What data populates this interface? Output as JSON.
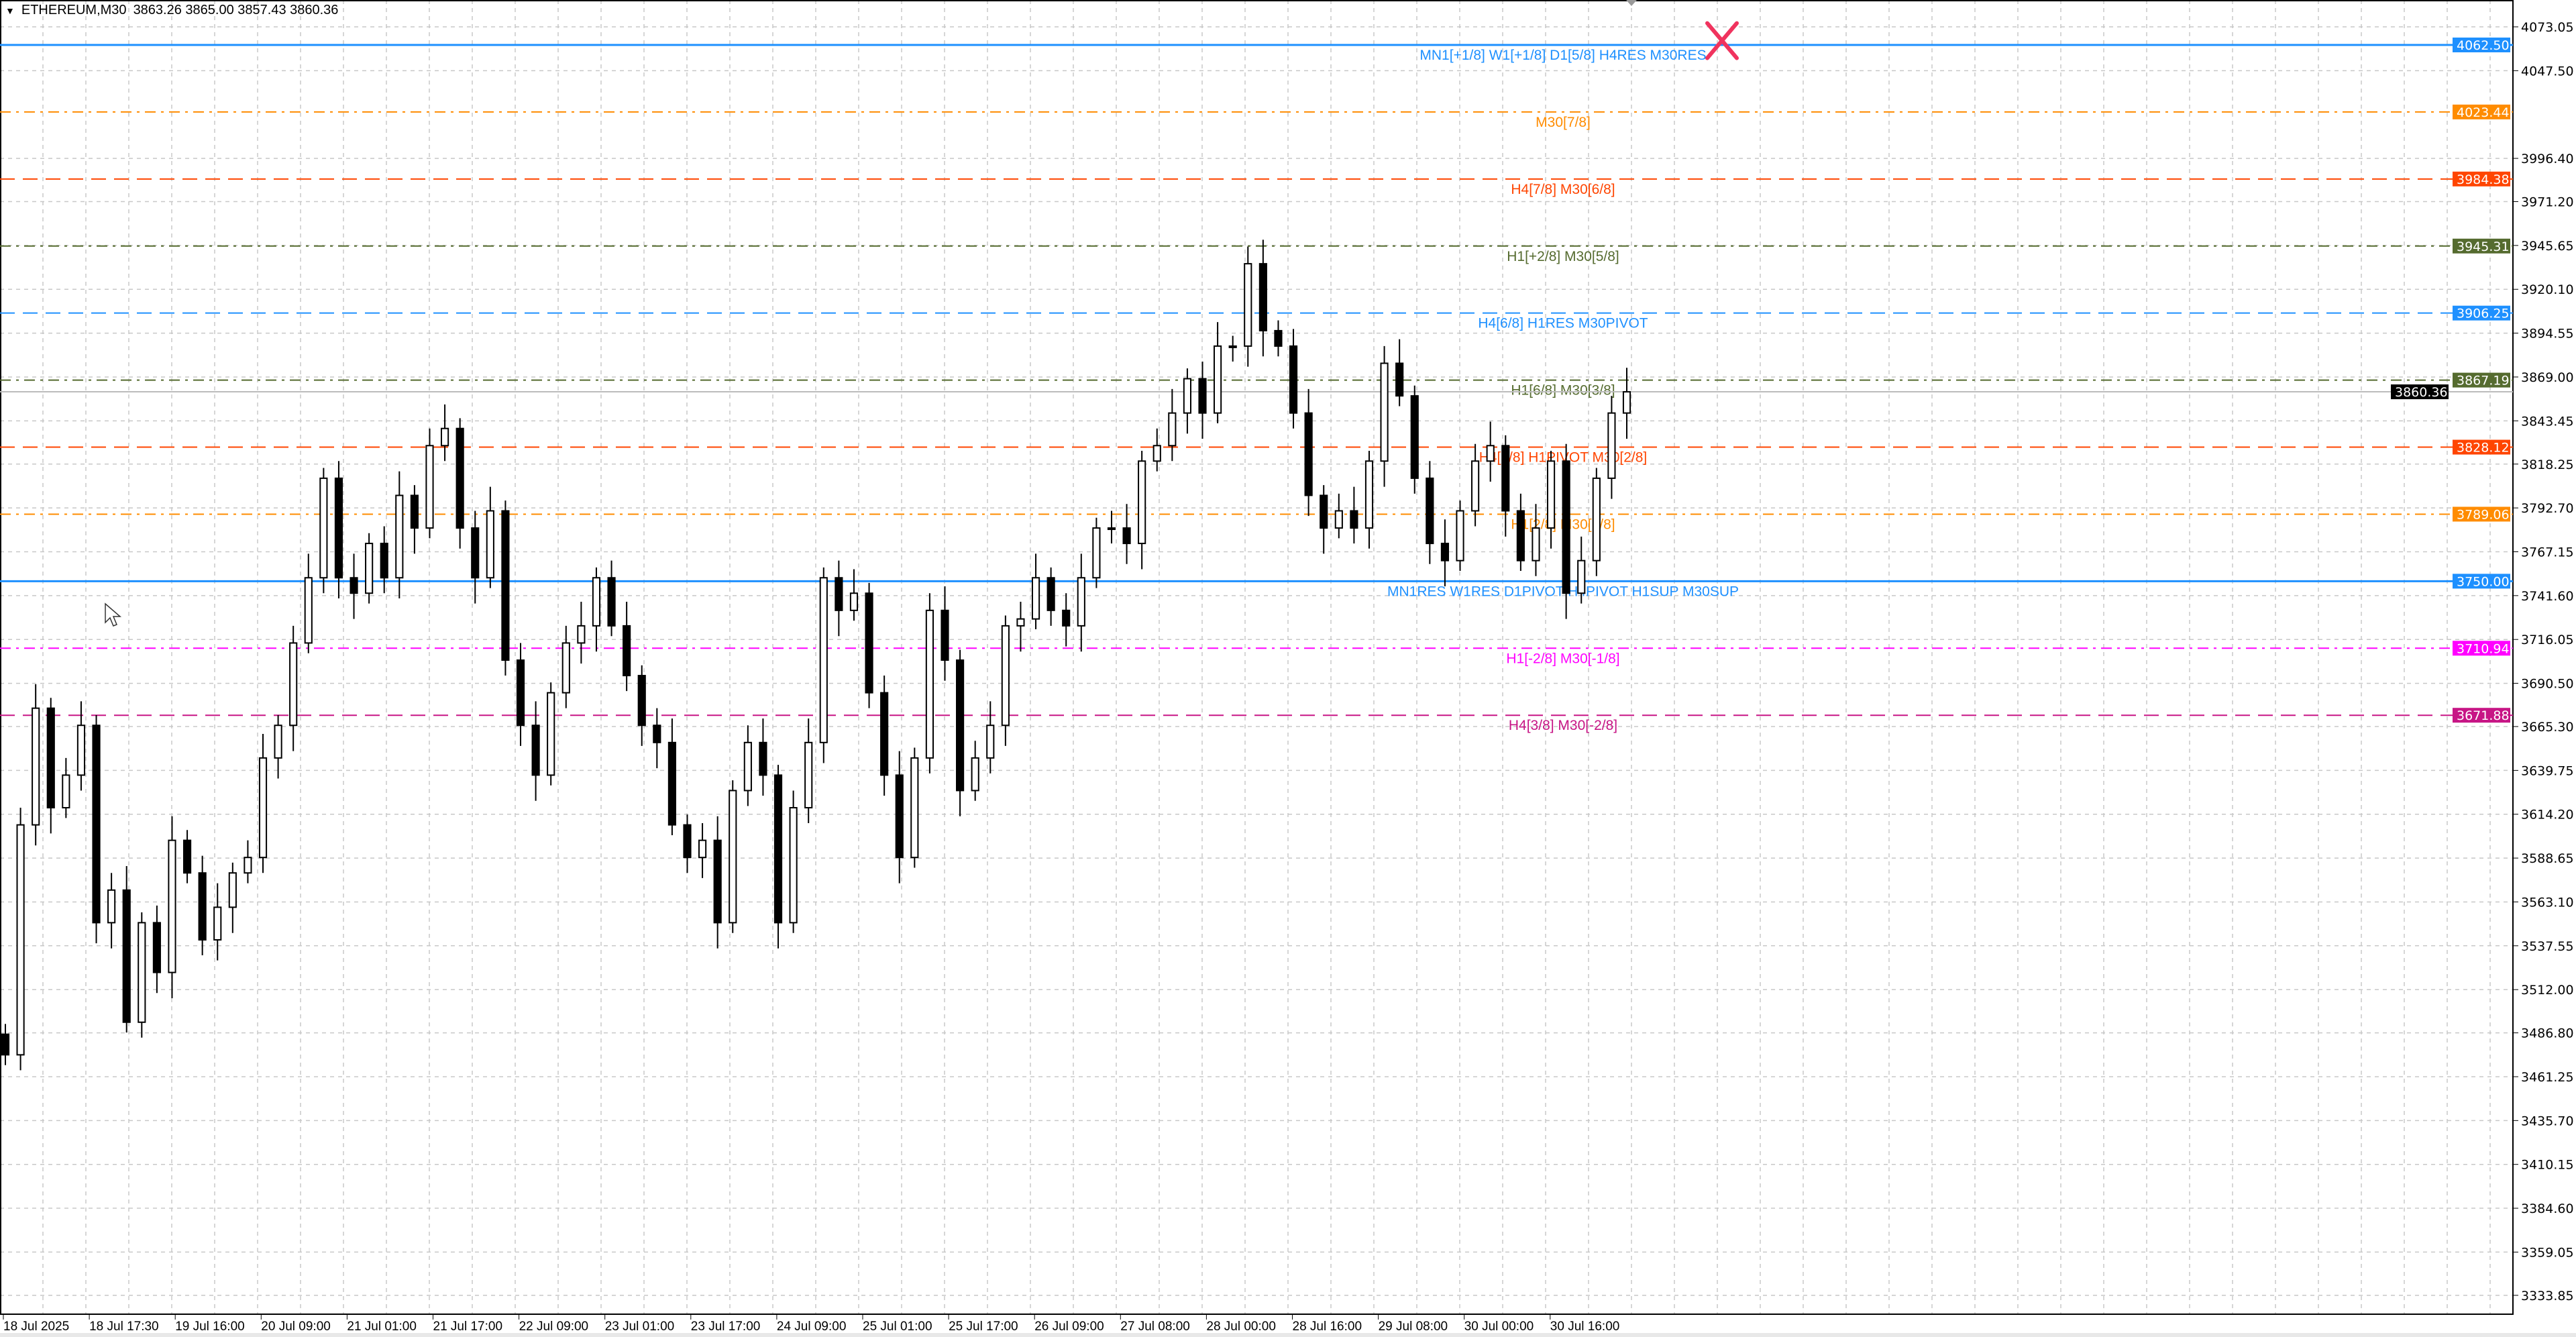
{
  "header": {
    "menu_icon": "triangle-down-icon",
    "symbol": "ETHEREUM,M30",
    "ohlc": "3863.26 3865.00 3857.43 3860.36"
  },
  "chart_data": {
    "type": "candlestick",
    "symbol": "ETHEREUM",
    "timeframe": "M30",
    "ylim": [
      3320,
      4080
    ],
    "grid": true,
    "y_ticks": [
      "4073.05",
      "4047.50",
      "3996.40",
      "3971.20",
      "3945.65",
      "3920.10",
      "3894.55",
      "3869.00",
      "3843.45",
      "3818.25",
      "3792.70",
      "3767.15",
      "3741.60",
      "3716.05",
      "3690.50",
      "3665.30",
      "3639.75",
      "3614.20",
      "3588.65",
      "3563.10",
      "3537.55",
      "3512.00",
      "3486.80",
      "3461.25",
      "3435.70",
      "3410.15",
      "3384.60",
      "3359.05",
      "3333.85"
    ],
    "x_ticks": [
      "18 Jul 2025",
      "18 Jul 17:30",
      "19 Jul 16:00",
      "20 Jul 09:00",
      "21 Jul 01:00",
      "21 Jul 17:00",
      "22 Jul 09:00",
      "23 Jul 01:00",
      "23 Jul 17:00",
      "24 Jul 09:00",
      "25 Jul 01:00",
      "25 Jul 17:00",
      "26 Jul 09:00",
      "27 Jul 08:00",
      "28 Jul 00:00",
      "28 Jul 16:00",
      "29 Jul 08:00",
      "30 Jul 00:00",
      "30 Jul 16:00"
    ],
    "closes": [
      3474,
      3608,
      3676,
      3618,
      3637,
      3666,
      3551,
      3570,
      3493,
      3551,
      3522,
      3599,
      3580,
      3541,
      3560,
      3580,
      3589,
      3647,
      3666,
      3714,
      3752,
      3810,
      3752,
      3743,
      3772,
      3752,
      3800,
      3781,
      3829,
      3839,
      3781,
      3752,
      3791,
      3704,
      3666,
      3637,
      3685,
      3714,
      3724,
      3752,
      3724,
      3695,
      3666,
      3656,
      3608,
      3589,
      3599,
      3551,
      3628,
      3656,
      3637,
      3551,
      3618,
      3656,
      3752,
      3733,
      3743,
      3685,
      3637,
      3589,
      3647,
      3733,
      3704,
      3628,
      3647,
      3666,
      3724,
      3728,
      3752,
      3733,
      3724,
      3752,
      3781,
      3781,
      3772,
      3820,
      3829,
      3848,
      3868,
      3848,
      3887,
      3887,
      3935,
      3896,
      3887,
      3848,
      3800,
      3781,
      3791,
      3781,
      3820,
      3877,
      3858,
      3810,
      3772,
      3762,
      3791,
      3820,
      3829,
      3791,
      3762,
      3781,
      3820,
      3743,
      3762,
      3810,
      3848,
      3860.36
    ],
    "current_price": {
      "value": 3860.36,
      "label": "3860.36",
      "color": "#000000"
    },
    "levels": [
      {
        "price": 4062.5,
        "label": "4062.50",
        "text": "MN1[+1/8] W1[+1/8] D1[5/8] H4RES M30RES",
        "color": "#1e90ff",
        "style": "solid"
      },
      {
        "price": 4023.44,
        "label": "4023.44",
        "text": "M30[7/8]",
        "color": "#ff8c00",
        "style": "dashdot"
      },
      {
        "price": 3984.38,
        "label": "3984.38",
        "text": "H4[7/8] M30[6/8]",
        "color": "#ff4500",
        "style": "dashed"
      },
      {
        "price": 3945.31,
        "label": "3945.31",
        "text": "H1[+2/8] M30[5/8]",
        "color": "#556b2f",
        "style": "dashdot"
      },
      {
        "price": 3906.25,
        "label": "3906.25",
        "text": "H4[6/8] H1RES M30PIVOT",
        "color": "#1e90ff",
        "style": "dashed"
      },
      {
        "price": 3867.19,
        "label": "3867.19",
        "text": "H1[6/8] M30[3/8]",
        "color": "#556b2f",
        "style": "dashdot"
      },
      {
        "price": 3828.12,
        "label": "3828.12",
        "text": "H4[5/8] H1PIVOT M30[2/8]",
        "color": "#ff4500",
        "style": "dashed"
      },
      {
        "price": 3789.06,
        "label": "3789.06",
        "text": "H1[2/8] M30[1/8]",
        "color": "#ff8c00",
        "style": "dashdot"
      },
      {
        "price": 3750.0,
        "label": "3750.00",
        "text": "MN1RES W1RES D1PIVOT H4PIVOT H1SUP M30SUP",
        "color": "#1e90ff",
        "style": "solid"
      },
      {
        "price": 3710.94,
        "label": "3710.94",
        "text": "H1[-2/8] M30[-1/8]",
        "color": "#ff00ff",
        "style": "dashdot"
      },
      {
        "price": 3671.88,
        "label": "3671.88",
        "text": "H4[3/8] M30[-2/8]",
        "color": "#c71585",
        "style": "dashed"
      }
    ],
    "marker": {
      "icon": "x-cross-icon",
      "color": "#f0335e",
      "price": 4065
    }
  }
}
